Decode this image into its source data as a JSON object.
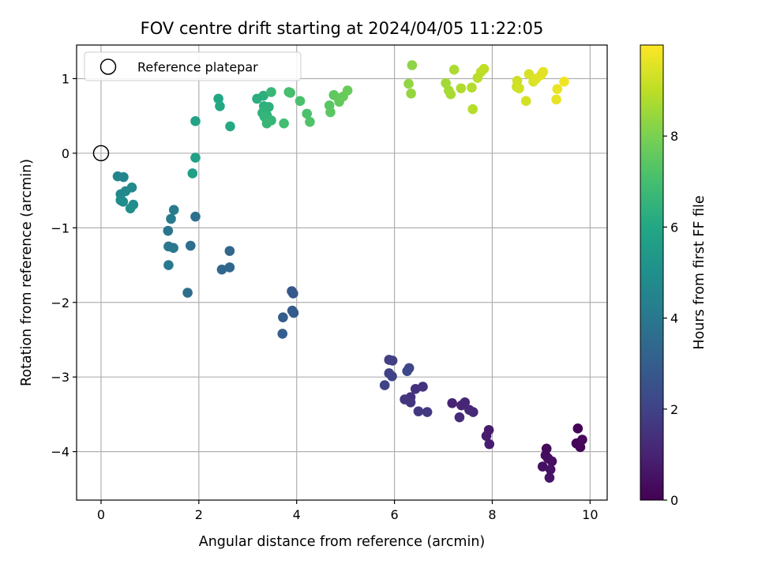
{
  "chart_data": {
    "type": "scatter",
    "title": "FOV centre drift starting at 2024/04/05 11:22:05",
    "xlabel": "Angular distance from reference (arcmin)",
    "ylabel": "Rotation from reference (arcmin)",
    "xlim": [
      -0.5,
      10.35
    ],
    "ylim": [
      -4.65,
      1.45
    ],
    "xticks": [
      0,
      2,
      4,
      6,
      8,
      10
    ],
    "yticks": [
      -4,
      -3,
      -2,
      -1,
      0,
      1
    ],
    "grid": true,
    "legend_placement": "top-left",
    "colorbar": {
      "label": "Hours from first FF file",
      "colormap": "viridis",
      "range": [
        0,
        10
      ],
      "ticks": [
        0,
        2,
        4,
        6,
        8
      ]
    },
    "reference": {
      "name": "Reference platepar",
      "x": 0,
      "y": 0
    },
    "points": [
      {
        "x": 9.75,
        "y": -3.69,
        "t": 0.05
      },
      {
        "x": 9.72,
        "y": -3.89,
        "t": 0.1
      },
      {
        "x": 9.8,
        "y": -3.94,
        "t": 0.15
      },
      {
        "x": 9.84,
        "y": -3.84,
        "t": 0.2
      },
      {
        "x": 9.11,
        "y": -3.96,
        "t": 0.25
      },
      {
        "x": 9.09,
        "y": -4.05,
        "t": 0.3
      },
      {
        "x": 9.14,
        "y": -4.09,
        "t": 0.35
      },
      {
        "x": 9.22,
        "y": -4.13,
        "t": 0.4
      },
      {
        "x": 9.03,
        "y": -4.2,
        "t": 0.45
      },
      {
        "x": 9.19,
        "y": -4.24,
        "t": 0.5
      },
      {
        "x": 9.17,
        "y": -4.35,
        "t": 0.6
      },
      {
        "x": 7.93,
        "y": -3.71,
        "t": 0.75
      },
      {
        "x": 7.88,
        "y": -3.79,
        "t": 0.8
      },
      {
        "x": 7.94,
        "y": -3.9,
        "t": 0.85
      },
      {
        "x": 7.18,
        "y": -3.35,
        "t": 1.0
      },
      {
        "x": 7.37,
        "y": -3.38,
        "t": 1.05
      },
      {
        "x": 7.44,
        "y": -3.34,
        "t": 1.1
      },
      {
        "x": 7.53,
        "y": -3.44,
        "t": 1.15
      },
      {
        "x": 7.61,
        "y": -3.47,
        "t": 1.2
      },
      {
        "x": 7.33,
        "y": -3.54,
        "t": 1.25
      },
      {
        "x": 6.33,
        "y": -3.27,
        "t": 1.4
      },
      {
        "x": 6.43,
        "y": -3.16,
        "t": 1.45
      },
      {
        "x": 6.58,
        "y": -3.13,
        "t": 1.5
      },
      {
        "x": 6.21,
        "y": -3.3,
        "t": 1.55
      },
      {
        "x": 6.33,
        "y": -3.34,
        "t": 1.6
      },
      {
        "x": 6.49,
        "y": -3.46,
        "t": 1.65
      },
      {
        "x": 6.67,
        "y": -3.47,
        "t": 1.7
      },
      {
        "x": 5.89,
        "y": -2.77,
        "t": 1.85
      },
      {
        "x": 5.96,
        "y": -2.78,
        "t": 1.9
      },
      {
        "x": 5.89,
        "y": -2.95,
        "t": 1.95
      },
      {
        "x": 5.95,
        "y": -2.99,
        "t": 2.0
      },
      {
        "x": 5.8,
        "y": -3.11,
        "t": 2.05
      },
      {
        "x": 6.3,
        "y": -2.88,
        "t": 2.1
      },
      {
        "x": 6.26,
        "y": -2.92,
        "t": 2.15
      },
      {
        "x": 3.9,
        "y": -1.85,
        "t": 2.75
      },
      {
        "x": 3.93,
        "y": -1.88,
        "t": 2.8
      },
      {
        "x": 3.91,
        "y": -2.11,
        "t": 2.85
      },
      {
        "x": 3.94,
        "y": -2.14,
        "t": 2.9
      },
      {
        "x": 3.72,
        "y": -2.2,
        "t": 2.95
      },
      {
        "x": 3.71,
        "y": -2.42,
        "t": 3.0
      },
      {
        "x": 2.63,
        "y": -1.31,
        "t": 3.3
      },
      {
        "x": 2.63,
        "y": -1.53,
        "t": 3.35
      },
      {
        "x": 2.47,
        "y": -1.56,
        "t": 3.4
      },
      {
        "x": 1.77,
        "y": -1.87,
        "t": 3.6
      },
      {
        "x": 1.83,
        "y": -1.24,
        "t": 3.65
      },
      {
        "x": 1.93,
        "y": -0.85,
        "t": 3.7
      },
      {
        "x": 1.37,
        "y": -1.04,
        "t": 3.9
      },
      {
        "x": 1.38,
        "y": -1.25,
        "t": 3.95
      },
      {
        "x": 1.48,
        "y": -1.27,
        "t": 4.0
      },
      {
        "x": 1.38,
        "y": -1.5,
        "t": 4.05
      },
      {
        "x": 1.43,
        "y": -0.88,
        "t": 4.1
      },
      {
        "x": 1.49,
        "y": -0.76,
        "t": 4.15
      },
      {
        "x": 0.34,
        "y": -0.31,
        "t": 4.55
      },
      {
        "x": 0.46,
        "y": -0.32,
        "t": 4.6
      },
      {
        "x": 0.4,
        "y": -0.55,
        "t": 4.65
      },
      {
        "x": 0.5,
        "y": -0.51,
        "t": 4.7
      },
      {
        "x": 0.63,
        "y": -0.46,
        "t": 4.75
      },
      {
        "x": 0.4,
        "y": -0.63,
        "t": 4.8
      },
      {
        "x": 0.45,
        "y": -0.65,
        "t": 4.85
      },
      {
        "x": 0.66,
        "y": -0.69,
        "t": 4.9
      },
      {
        "x": 0.6,
        "y": -0.74,
        "t": 4.95
      },
      {
        "x": 1.87,
        "y": -0.27,
        "t": 5.7
      },
      {
        "x": 1.93,
        "y": -0.06,
        "t": 5.75
      },
      {
        "x": 1.93,
        "y": 0.43,
        "t": 5.8
      },
      {
        "x": 2.4,
        "y": 0.73,
        "t": 6.0
      },
      {
        "x": 2.43,
        "y": 0.63,
        "t": 6.05
      },
      {
        "x": 2.64,
        "y": 0.36,
        "t": 6.1
      },
      {
        "x": 3.19,
        "y": 0.73,
        "t": 6.25
      },
      {
        "x": 3.32,
        "y": 0.77,
        "t": 6.3
      },
      {
        "x": 3.33,
        "y": 0.63,
        "t": 6.35
      },
      {
        "x": 3.43,
        "y": 0.62,
        "t": 6.4
      },
      {
        "x": 3.3,
        "y": 0.54,
        "t": 6.45
      },
      {
        "x": 3.39,
        "y": 0.51,
        "t": 6.5
      },
      {
        "x": 3.34,
        "y": 0.49,
        "t": 6.55
      },
      {
        "x": 3.48,
        "y": 0.44,
        "t": 6.6
      },
      {
        "x": 3.39,
        "y": 0.4,
        "t": 6.65
      },
      {
        "x": 3.48,
        "y": 0.82,
        "t": 6.7
      },
      {
        "x": 3.74,
        "y": 0.4,
        "t": 6.95
      },
      {
        "x": 3.84,
        "y": 0.82,
        "t": 7.0
      },
      {
        "x": 3.87,
        "y": 0.81,
        "t": 7.05
      },
      {
        "x": 4.07,
        "y": 0.7,
        "t": 7.1
      },
      {
        "x": 4.21,
        "y": 0.53,
        "t": 7.15
      },
      {
        "x": 4.27,
        "y": 0.42,
        "t": 7.2
      },
      {
        "x": 4.67,
        "y": 0.64,
        "t": 7.4
      },
      {
        "x": 4.69,
        "y": 0.55,
        "t": 7.45
      },
      {
        "x": 4.76,
        "y": 0.78,
        "t": 7.5
      },
      {
        "x": 4.86,
        "y": 0.73,
        "t": 7.55
      },
      {
        "x": 4.87,
        "y": 0.69,
        "t": 7.6
      },
      {
        "x": 4.95,
        "y": 0.76,
        "t": 7.65
      },
      {
        "x": 5.04,
        "y": 0.84,
        "t": 7.7
      },
      {
        "x": 6.36,
        "y": 1.18,
        "t": 8.3
      },
      {
        "x": 6.29,
        "y": 0.93,
        "t": 8.35
      },
      {
        "x": 6.34,
        "y": 0.8,
        "t": 8.4
      },
      {
        "x": 7.05,
        "y": 0.94,
        "t": 8.6
      },
      {
        "x": 7.11,
        "y": 0.84,
        "t": 8.65
      },
      {
        "x": 7.15,
        "y": 0.79,
        "t": 8.7
      },
      {
        "x": 7.22,
        "y": 1.12,
        "t": 8.75
      },
      {
        "x": 7.36,
        "y": 0.87,
        "t": 8.8
      },
      {
        "x": 7.58,
        "y": 0.88,
        "t": 8.85
      },
      {
        "x": 7.6,
        "y": 0.59,
        "t": 8.9
      },
      {
        "x": 7.7,
        "y": 1.01,
        "t": 8.95
      },
      {
        "x": 7.77,
        "y": 1.09,
        "t": 9.0
      },
      {
        "x": 7.83,
        "y": 1.13,
        "t": 9.05
      },
      {
        "x": 8.5,
        "y": 0.89,
        "t": 9.2
      },
      {
        "x": 8.51,
        "y": 0.97,
        "t": 9.25
      },
      {
        "x": 8.55,
        "y": 0.87,
        "t": 9.3
      },
      {
        "x": 8.69,
        "y": 0.7,
        "t": 9.35
      },
      {
        "x": 8.75,
        "y": 1.06,
        "t": 9.4
      },
      {
        "x": 8.84,
        "y": 0.96,
        "t": 9.45
      },
      {
        "x": 8.9,
        "y": 1.0,
        "t": 9.5
      },
      {
        "x": 9.0,
        "y": 1.05,
        "t": 9.55
      },
      {
        "x": 9.04,
        "y": 1.09,
        "t": 9.6
      },
      {
        "x": 9.31,
        "y": 0.72,
        "t": 9.65
      },
      {
        "x": 9.33,
        "y": 0.86,
        "t": 9.7
      },
      {
        "x": 9.47,
        "y": 0.96,
        "t": 9.8
      }
    ]
  }
}
